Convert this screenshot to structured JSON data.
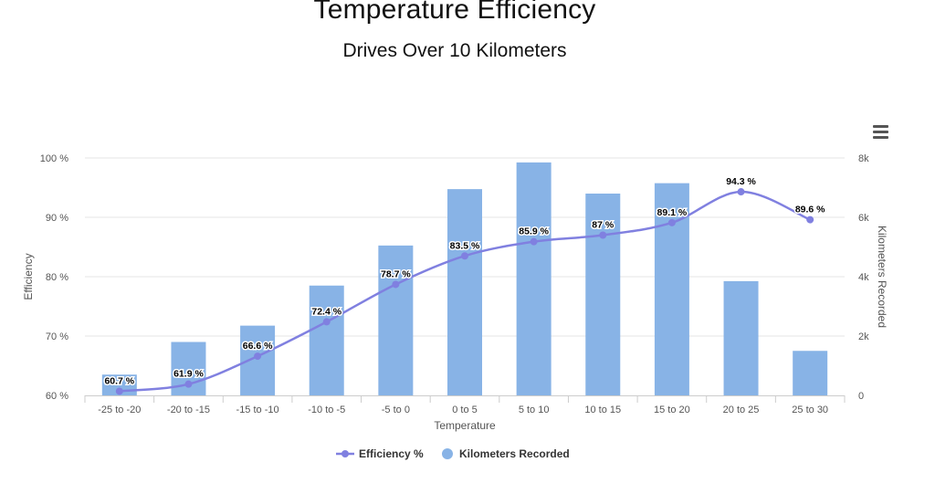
{
  "chart_data": {
    "type": "bar",
    "title": "Temperature Efficiency",
    "subtitle": "Drives Over 10 Kilometers",
    "xlabel": "Temperature",
    "ylabel": "Efficiency",
    "y2label": "Kilometers Recorded",
    "categories": [
      "-25 to -20",
      "-20 to -15",
      "-15 to -10",
      "-10 to -5",
      "-5 to 0",
      "0 to 5",
      "5 to 10",
      "10 to 15",
      "15 to 20",
      "20 to 25",
      "25 to 30"
    ],
    "ylim": [
      60,
      100
    ],
    "y2lim": [
      0,
      8000
    ],
    "y_ticks": [
      {
        "value": 60,
        "label": "60 %"
      },
      {
        "value": 70,
        "label": "70 %"
      },
      {
        "value": 80,
        "label": "80 %"
      },
      {
        "value": 90,
        "label": "90 %"
      },
      {
        "value": 100,
        "label": "100 %"
      }
    ],
    "y2_ticks": [
      {
        "value": 0,
        "label": "0"
      },
      {
        "value": 2000,
        "label": "2k"
      },
      {
        "value": 4000,
        "label": "4k"
      },
      {
        "value": 6000,
        "label": "6k"
      },
      {
        "value": 8000,
        "label": "8k"
      }
    ],
    "series": [
      {
        "name": "Efficiency %",
        "type": "spline",
        "axis": "left",
        "color": "#8080e0",
        "values": [
          60.7,
          61.9,
          66.6,
          72.4,
          78.7,
          83.5,
          85.9,
          87,
          89.1,
          94.3,
          89.6
        ],
        "labels": [
          "60.7 %",
          "61.9 %",
          "66.6 %",
          "72.4 %",
          "78.7 %",
          "83.5 %",
          "85.9 %",
          "87 %",
          "89.1 %",
          "94.3 %",
          "89.6 %"
        ]
      },
      {
        "name": "Kilometers Recorded",
        "type": "bar",
        "axis": "right",
        "color": "#88b3e6",
        "values": [
          700,
          1800,
          2350,
          3700,
          5050,
          6950,
          7850,
          6800,
          7150,
          3850,
          1500
        ]
      }
    ],
    "legend_position": "bottom-center",
    "grid": true
  },
  "menu": {
    "icon": "hamburger-menu-icon"
  }
}
